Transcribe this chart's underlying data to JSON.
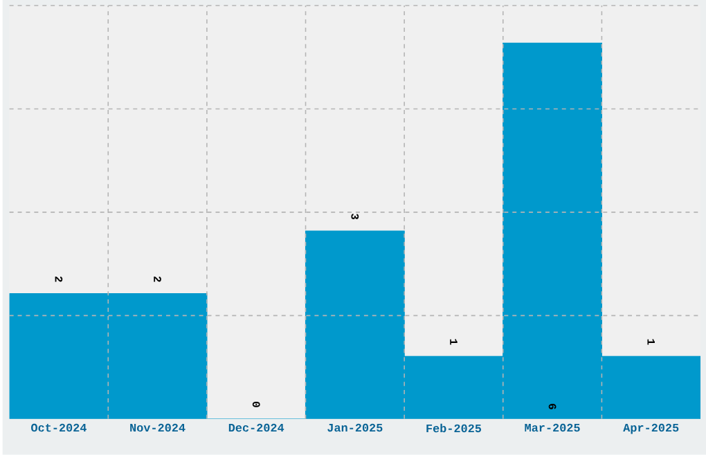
{
  "chart_data": {
    "type": "bar",
    "categories": [
      "Oct-2024",
      "Nov-2024",
      "Dec-2024",
      "Jan-2025",
      "Feb-2025",
      "Mar-2025",
      "Apr-2025"
    ],
    "values": [
      2,
      2,
      0,
      3,
      1,
      6,
      1
    ],
    "color": "#0099cc",
    "ylim": [
      0,
      6.6
    ],
    "yticks": [
      {
        "value": 1.65,
        "label": null
      },
      {
        "value": 3.3,
        "label": null
      },
      {
        "value": 4.95,
        "label": null
      },
      {
        "value": 6.6,
        "label": null
      }
    ],
    "data_labels": true,
    "grid": true
  }
}
